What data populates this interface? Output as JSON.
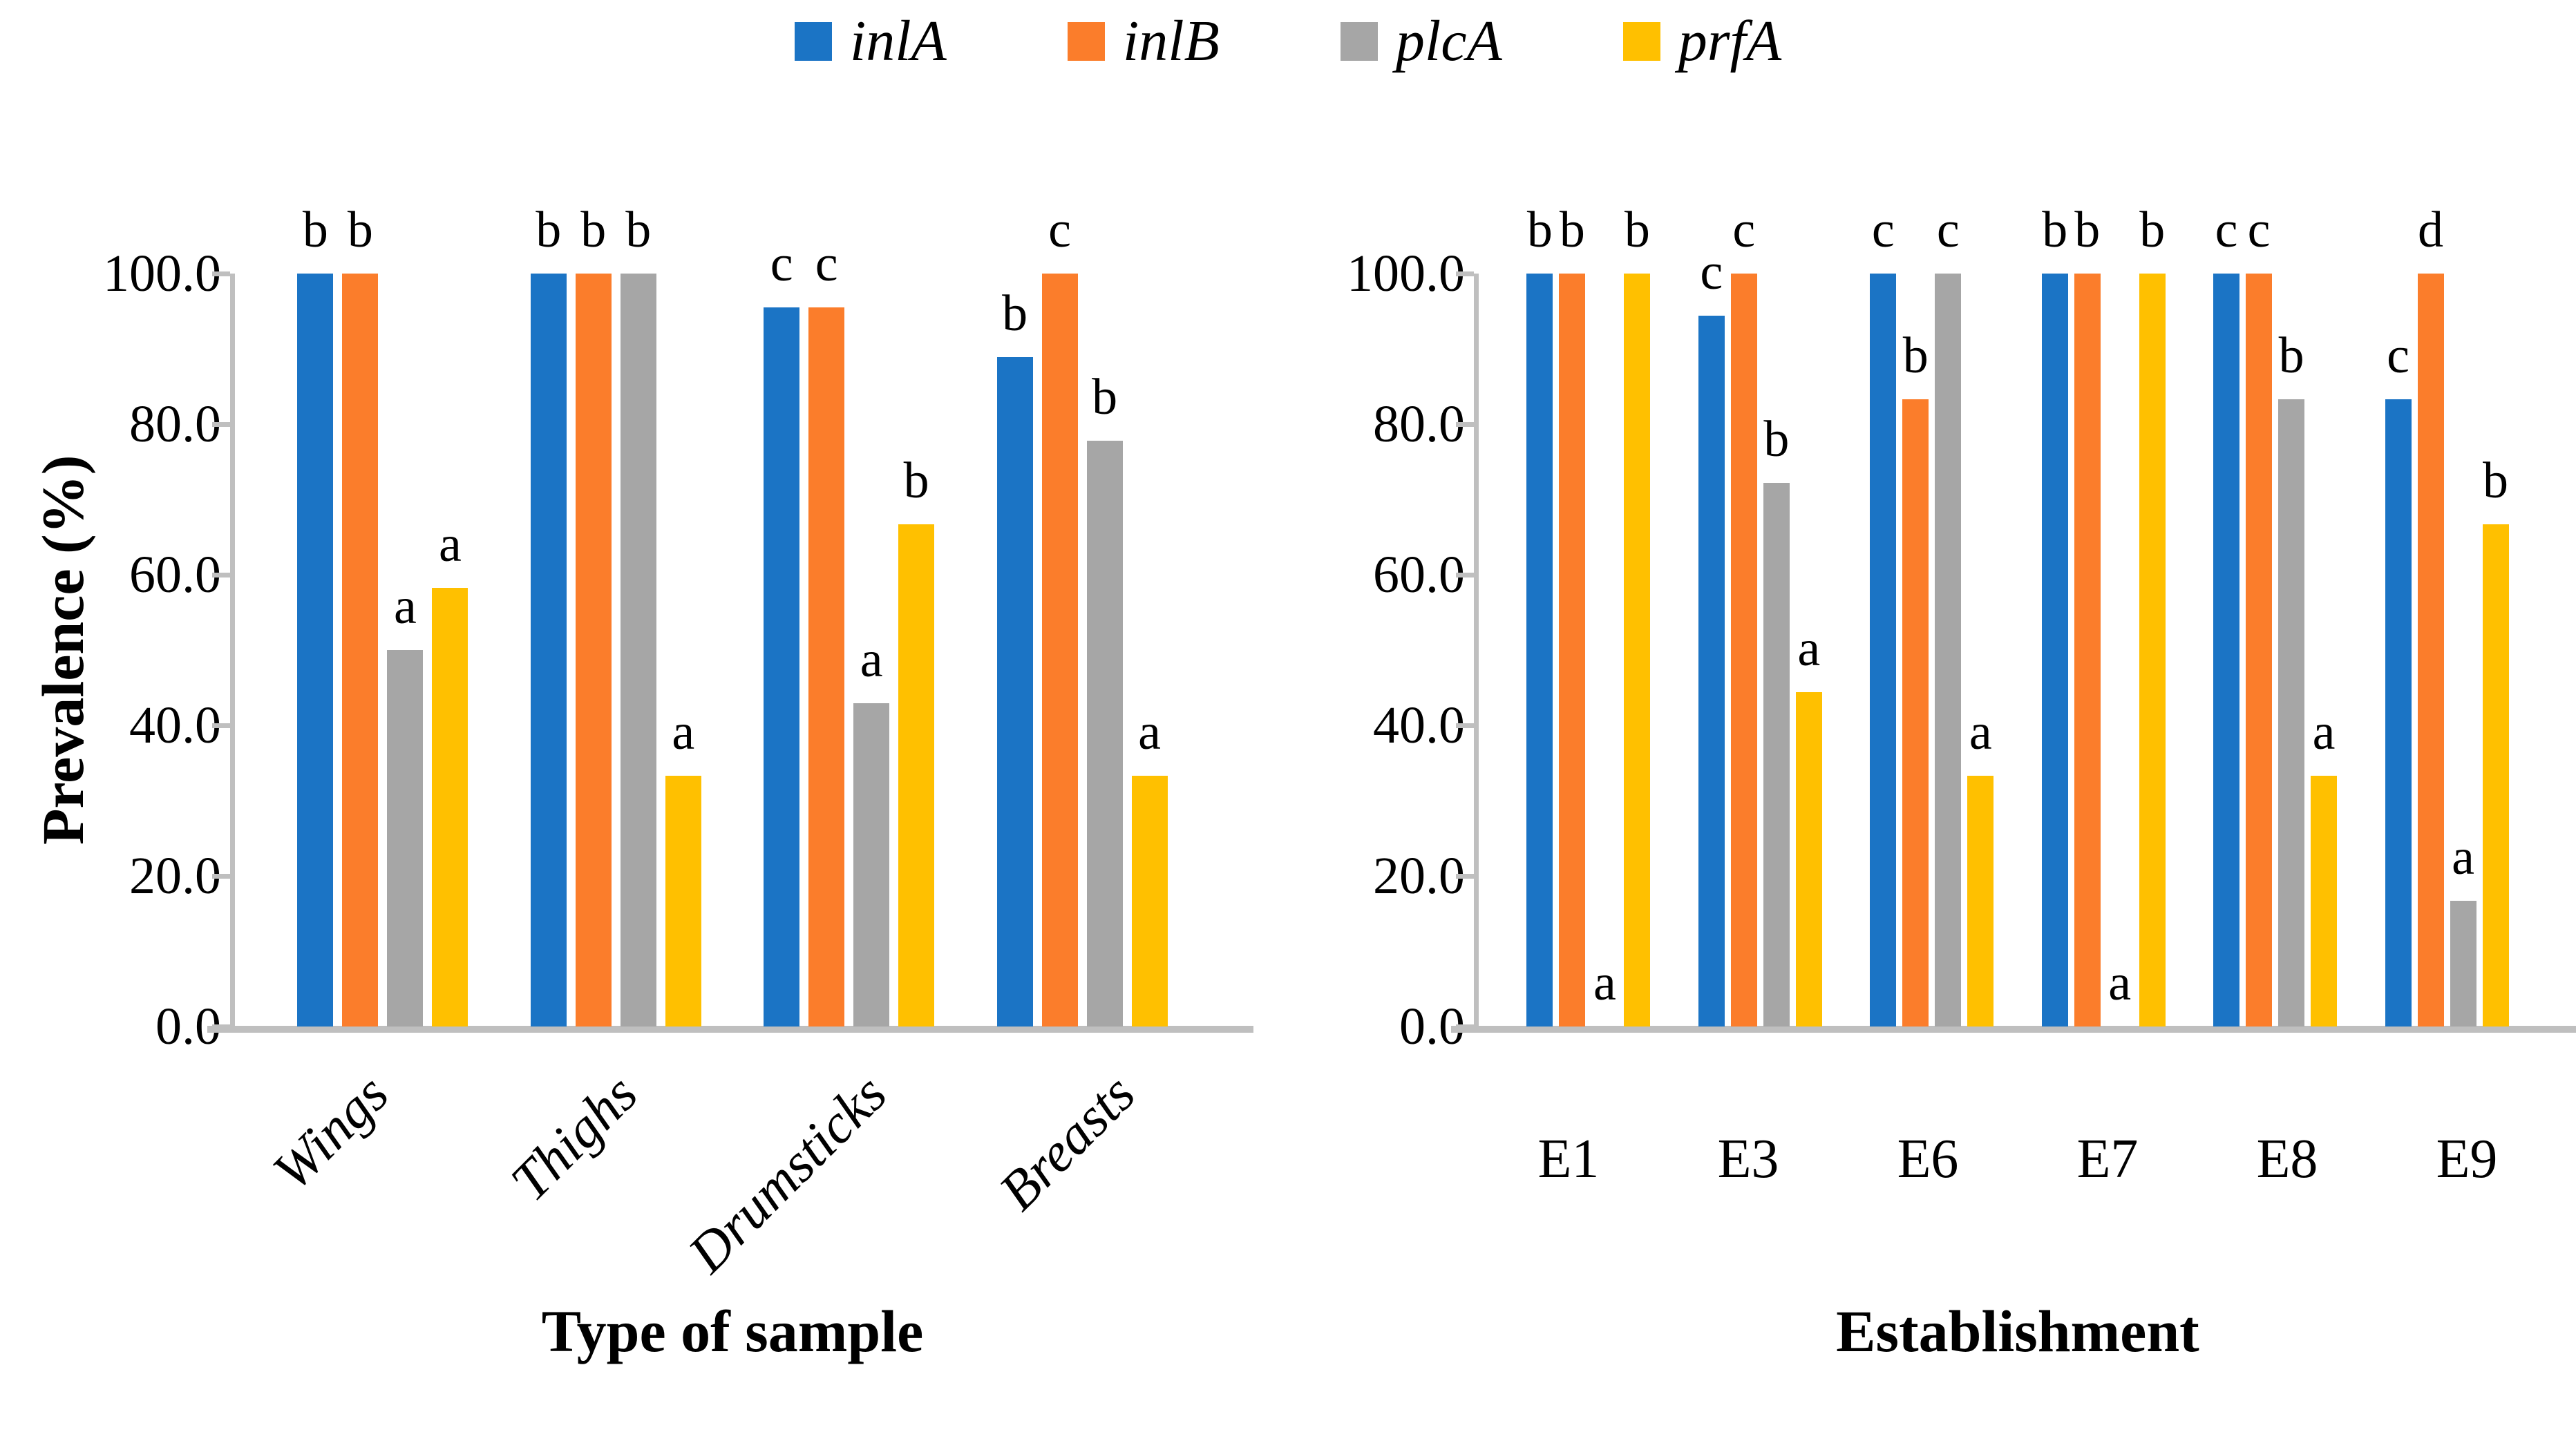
{
  "figure": {
    "colors": {
      "inlA": "#1B74C5",
      "inlB": "#FB7D2B",
      "plcA": "#A6A6A6",
      "prfA": "#FFC000",
      "axis": "#BFBFBF",
      "text": "#000000"
    },
    "legend": {
      "position": "top-center",
      "items": [
        {
          "label": "inlA"
        },
        {
          "label": "inlB"
        },
        {
          "label": "plcA"
        },
        {
          "label": "prfA"
        }
      ]
    }
  },
  "chart_data": [
    {
      "type": "bar",
      "panel": "left",
      "title": "",
      "xlabel": "Type of sample",
      "ylabel": "Prevalence (%)",
      "ylim": [
        0,
        100
      ],
      "grid": false,
      "ytick_values": [
        100,
        80,
        60,
        40,
        20,
        0
      ],
      "ytick_labels": [
        "100.0",
        "80.0",
        "60.0",
        "40.0",
        "20.0",
        "0.0"
      ],
      "categories": [
        "Wings",
        "Thighs",
        "Drumsticks",
        "Breasts"
      ],
      "series": [
        {
          "name": "inlA",
          "values": [
            100,
            100,
            95.5,
            88.9
          ],
          "letters": [
            "b",
            "b",
            "c",
            "b"
          ]
        },
        {
          "name": "inlB",
          "values": [
            100,
            100,
            95.5,
            100
          ],
          "letters": [
            "b",
            "b",
            "c",
            "c"
          ]
        },
        {
          "name": "plcA",
          "values": [
            50.0,
            100,
            42.9,
            77.8
          ],
          "letters": [
            "a",
            "b",
            "a",
            "b"
          ]
        },
        {
          "name": "prfA",
          "values": [
            58.3,
            33.3,
            66.7,
            33.3
          ],
          "letters": [
            "a",
            "a",
            "b",
            "a"
          ]
        }
      ]
    },
    {
      "type": "bar",
      "panel": "right",
      "title": "",
      "xlabel": "Establishment",
      "ylabel": "",
      "ylim": [
        0,
        100
      ],
      "grid": false,
      "ytick_values": [
        100,
        80,
        60,
        40,
        20,
        0
      ],
      "ytick_labels": [
        "100.0",
        "80.0",
        "60.0",
        "40.0",
        "20.0",
        "0.0"
      ],
      "categories": [
        "E1",
        "E3",
        "E6",
        "E7",
        "E8",
        "E9"
      ],
      "series": [
        {
          "name": "inlA",
          "values": [
            100,
            94.4,
            100,
            100,
            100,
            83.3
          ],
          "letters": [
            "b",
            "c",
            "c",
            "b",
            "c",
            "c"
          ]
        },
        {
          "name": "inlB",
          "values": [
            100,
            100,
            83.3,
            100,
            100,
            100
          ],
          "letters": [
            "b",
            "c",
            "b",
            "b",
            "c",
            "d"
          ]
        },
        {
          "name": "plcA",
          "values": [
            0,
            72.2,
            100,
            0,
            83.3,
            16.7
          ],
          "letters": [
            "a",
            "b",
            "c",
            "a",
            "b",
            "a"
          ]
        },
        {
          "name": "prfA",
          "values": [
            100,
            44.4,
            33.3,
            100,
            33.3,
            66.7
          ],
          "letters": [
            "b",
            "a",
            "a",
            "b",
            "a",
            "b"
          ]
        }
      ]
    }
  ],
  "layout_note": "letters above bars are statistical significance groups"
}
